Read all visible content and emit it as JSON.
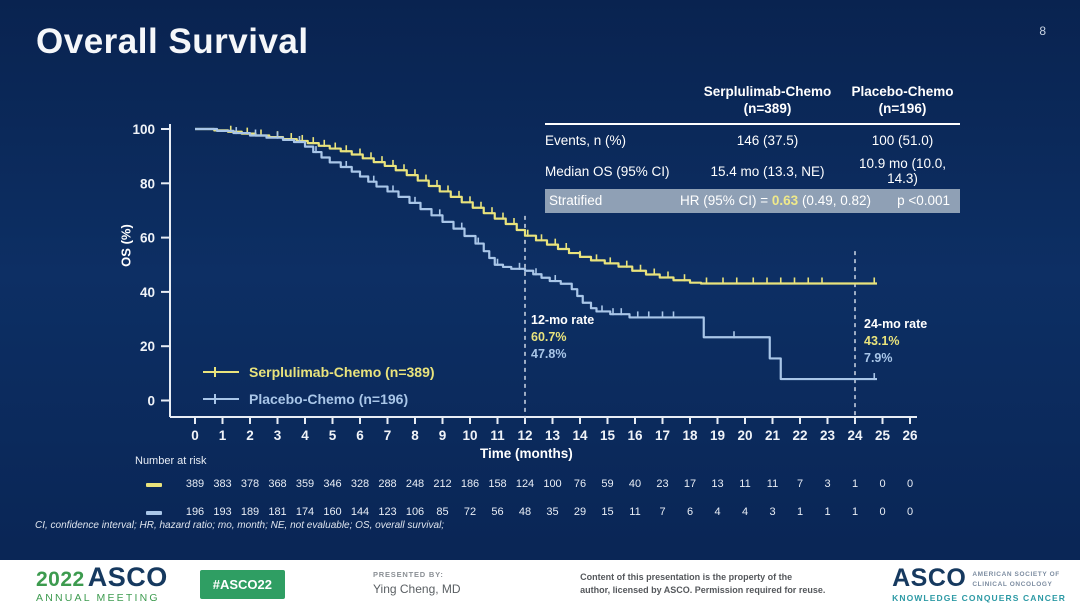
{
  "slide": {
    "title": "Overall Survival",
    "page_number": "8"
  },
  "colors": {
    "background": "#0b2b5d",
    "serplulimab": "#e9e37c",
    "placebo": "#a9c6e8",
    "axis": "#e8edf5",
    "highlight_row": "#8fa0b5",
    "hr_yellow": "#efe98a",
    "footer_green": "#3d9b4f",
    "badge_green": "#2f9e63",
    "asco_navy": "#16395f",
    "tagline_teal": "#2d9aa5"
  },
  "stats_table": {
    "col_headers": [
      {
        "line1": "Serplulimab-Chemo",
        "line2": "(n=389)"
      },
      {
        "line1": "Placebo-Chemo",
        "line2": "(n=196)"
      }
    ],
    "rows": [
      {
        "label": "Events, n (%)",
        "values": [
          "146 (37.5)",
          "100 (51.0)"
        ]
      },
      {
        "label": "Median OS (95% CI)",
        "values": [
          "15.4 mo (13.3, NE)",
          "10.9 mo (10.0, 14.3)"
        ]
      }
    ],
    "stratified": {
      "label": "Stratified",
      "hr_prefix": "HR (95% CI) = ",
      "hr_value": "0.63",
      "hr_ci": " (0.49, 0.82)",
      "p_value": "p <0.001"
    }
  },
  "annotations": {
    "rate12": {
      "title": "12-mo rate",
      "serplulimab": "60.7%",
      "placebo": "47.8%"
    },
    "rate24": {
      "title": "24-mo rate",
      "serplulimab": "43.1%",
      "placebo": "7.9%"
    }
  },
  "chart_data": {
    "type": "line",
    "subtype": "kaplan-meier-step",
    "title": "Overall Survival",
    "xlabel": "Time (months)",
    "ylabel": "OS (%)",
    "xlim": [
      0,
      26
    ],
    "ylim": [
      0,
      100
    ],
    "xticks": [
      0,
      1,
      2,
      3,
      4,
      5,
      6,
      7,
      8,
      9,
      10,
      11,
      12,
      13,
      14,
      15,
      16,
      17,
      18,
      19,
      20,
      21,
      22,
      23,
      24,
      25,
      26
    ],
    "yticks": [
      0,
      20,
      40,
      60,
      80,
      100
    ],
    "grid": false,
    "legend_position": "lower-left",
    "dashed_vlines": [
      {
        "x": 12,
        "top_pct": 68
      },
      {
        "x": 24,
        "top_pct": 55
      }
    ],
    "series": [
      {
        "name": "Serplulimab-Chemo (n=389)",
        "color": "#e9e37c",
        "steps": [
          [
            0,
            100
          ],
          [
            0.7,
            99.5
          ],
          [
            1.2,
            99
          ],
          [
            1.7,
            98.3
          ],
          [
            2.2,
            97.6
          ],
          [
            2.7,
            97
          ],
          [
            3.2,
            96.3
          ],
          [
            3.7,
            95.6
          ],
          [
            4.1,
            94.8
          ],
          [
            4.5,
            93.8
          ],
          [
            4.9,
            92.8
          ],
          [
            5.3,
            91.8
          ],
          [
            5.7,
            90.6
          ],
          [
            6.1,
            89.2
          ],
          [
            6.5,
            87.8
          ],
          [
            6.9,
            86.4
          ],
          [
            7.3,
            84.8
          ],
          [
            7.7,
            83
          ],
          [
            8.1,
            81
          ],
          [
            8.5,
            79
          ],
          [
            8.9,
            77
          ],
          [
            9.3,
            75
          ],
          [
            9.7,
            73
          ],
          [
            10.1,
            71
          ],
          [
            10.5,
            69
          ],
          [
            10.9,
            67
          ],
          [
            11.3,
            65
          ],
          [
            11.7,
            62.8
          ],
          [
            12,
            60.7
          ],
          [
            12.4,
            59
          ],
          [
            12.8,
            57.4
          ],
          [
            13.2,
            55.8
          ],
          [
            13.6,
            54.3
          ],
          [
            14,
            52.9
          ],
          [
            14.4,
            51.6
          ],
          [
            14.9,
            50.5
          ],
          [
            15.4,
            49.3
          ],
          [
            15.9,
            47.8
          ],
          [
            16.4,
            46.4
          ],
          [
            16.9,
            45.3
          ],
          [
            17.4,
            44.3
          ],
          [
            18,
            43.4
          ],
          [
            18.4,
            43.1
          ],
          [
            24.8,
            43.1
          ]
        ],
        "censor_marks": [
          1.3,
          1.9,
          2.4,
          3.0,
          3.5,
          3.9,
          4.3,
          4.7,
          5.1,
          5.5,
          6.0,
          6.4,
          6.8,
          7.2,
          7.6,
          8.0,
          8.4,
          8.8,
          9.2,
          9.6,
          10.0,
          10.4,
          10.8,
          11.2,
          11.6,
          12.1,
          12.6,
          13.1,
          13.5,
          14.0,
          14.6,
          15.1,
          15.7,
          16.2,
          16.7,
          17.2,
          17.8,
          18.6,
          19.2,
          19.7,
          20.3,
          20.8,
          21.3,
          21.8,
          22.3,
          22.8,
          24.7
        ]
      },
      {
        "name": "Placebo-Chemo (n=196)",
        "color": "#a9c6e8",
        "steps": [
          [
            0,
            100
          ],
          [
            0.8,
            99.3
          ],
          [
            1.4,
            98.5
          ],
          [
            2,
            97.6
          ],
          [
            2.6,
            96.8
          ],
          [
            3.2,
            96
          ],
          [
            3.6,
            95.2
          ],
          [
            4,
            93.5
          ],
          [
            4.3,
            91.5
          ],
          [
            4.6,
            89.5
          ],
          [
            4.9,
            87.7
          ],
          [
            5.3,
            86
          ],
          [
            5.7,
            84.3
          ],
          [
            6,
            82.5
          ],
          [
            6.3,
            80.6
          ],
          [
            6.6,
            78.8
          ],
          [
            7,
            77
          ],
          [
            7.4,
            75
          ],
          [
            7.8,
            72.8
          ],
          [
            8.2,
            70.5
          ],
          [
            8.6,
            68.2
          ],
          [
            9,
            65.8
          ],
          [
            9.4,
            63.3
          ],
          [
            9.8,
            60.6
          ],
          [
            10.2,
            57.8
          ],
          [
            10.5,
            55
          ],
          [
            10.7,
            52.5
          ],
          [
            10.9,
            50
          ],
          [
            11.2,
            49.2
          ],
          [
            11.5,
            48.5
          ],
          [
            12,
            47.8
          ],
          [
            12.3,
            46.5
          ],
          [
            12.6,
            45.2
          ],
          [
            12.9,
            44
          ],
          [
            13.3,
            43
          ],
          [
            13.7,
            41
          ],
          [
            13.9,
            38.5
          ],
          [
            14.1,
            36
          ],
          [
            14.4,
            34
          ],
          [
            14.6,
            32.8
          ],
          [
            15.1,
            31.8
          ],
          [
            15.8,
            30.6
          ],
          [
            18.5,
            23.3
          ],
          [
            20.9,
            15.5
          ],
          [
            21.3,
            7.9
          ],
          [
            24.8,
            7.9
          ]
        ],
        "censor_marks": [
          1.5,
          2.2,
          3.0,
          3.8,
          4.4,
          5.5,
          6.5,
          7.2,
          8.0,
          8.9,
          9.7,
          10.3,
          11.0,
          11.8,
          12.4,
          13.1,
          14.8,
          15.2,
          15.5,
          16.1,
          16.5,
          17.0,
          17.4,
          19.6,
          24.7
        ]
      }
    ],
    "number_at_risk": {
      "label": "Number at risk",
      "rows": [
        {
          "name": "Serplulimab-Chemo",
          "color": "#e9e37c",
          "values": [
            389,
            383,
            378,
            368,
            359,
            346,
            328,
            288,
            248,
            212,
            186,
            158,
            124,
            100,
            76,
            59,
            40,
            23,
            17,
            13,
            11,
            11,
            7,
            3,
            1,
            0,
            0
          ]
        },
        {
          "name": "Placebo-Chemo",
          "color": "#a9c6e8",
          "values": [
            196,
            193,
            189,
            181,
            174,
            160,
            144,
            123,
            106,
            85,
            72,
            56,
            48,
            35,
            29,
            15,
            11,
            7,
            6,
            4,
            4,
            3,
            1,
            1,
            1,
            0,
            0
          ]
        }
      ]
    }
  },
  "footnote": "CI, confidence interval; HR, hazard ratio; mo, month; NE, not evaluable; OS, overall survival;",
  "footer": {
    "meeting_year": "2022",
    "meeting_org": "ASCO",
    "meeting_name": "ANNUAL MEETING",
    "hashtag": "#ASCO22",
    "presented_by_label": "PRESENTED BY:",
    "presenter": "Ying Cheng, MD",
    "rights_line1": "Content of this presentation is the property of the",
    "rights_line2": "author, licensed by ASCO. Permission required for reuse.",
    "org_name": "ASCO",
    "org_sub1": "AMERICAN SOCIETY OF",
    "org_sub2": "CLINICAL ONCOLOGY",
    "org_tagline": "KNOWLEDGE CONQUERS CANCER"
  }
}
